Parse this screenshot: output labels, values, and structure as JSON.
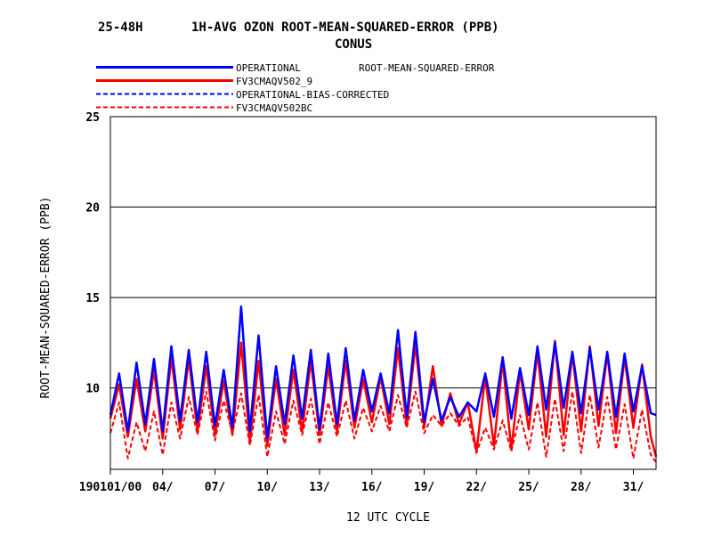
{
  "chart_data": {
    "type": "line",
    "title_left": "25-48H",
    "title_main": "1H-AVG OZON ROOT-MEAN-SQUARED-ERROR (PPB)",
    "subtitle": "CONUS",
    "legend_header": "ROOT-MEAN-SQUARED-ERROR",
    "xlabel": "12 UTC CYCLE",
    "ylabel": "ROOT-MEAN-SQUARED-ERROR (PPB)",
    "ylim": [
      5.5,
      25
    ],
    "yticks": [
      10,
      15,
      20,
      25
    ],
    "xlim": [
      1,
      32.3
    ],
    "xtick_values": [
      1,
      4,
      7,
      10,
      13,
      16,
      19,
      22,
      25,
      28,
      31
    ],
    "xtick_labels": [
      "190101/00",
      "04/",
      "07/",
      "10/",
      "13/",
      "16/",
      "19/",
      "22/",
      "25/",
      "28/",
      "31/"
    ],
    "grid": "horizontal",
    "legend_position": "top-left",
    "series": [
      {
        "name": "OPERATIONAL",
        "color": "#0000ff",
        "style": "solid",
        "x": [
          1.0,
          1.5,
          2.0,
          2.5,
          3.0,
          3.5,
          4.0,
          4.5,
          5.0,
          5.5,
          6.0,
          6.5,
          7.0,
          7.5,
          8.0,
          8.5,
          9.0,
          9.5,
          10.0,
          10.5,
          11.0,
          11.5,
          12.0,
          12.5,
          13.0,
          13.5,
          14.0,
          14.5,
          15.0,
          15.5,
          16.0,
          16.5,
          17.0,
          17.5,
          18.0,
          18.5,
          19.0,
          19.5,
          20.0,
          20.5,
          21.0,
          21.5,
          22.0,
          22.5,
          23.0,
          23.5,
          24.0,
          24.5,
          25.0,
          25.5,
          26.0,
          26.5,
          27.0,
          27.5,
          28.0,
          28.5,
          29.0,
          29.5,
          30.0,
          30.5,
          31.0,
          31.5,
          32.0,
          32.3
        ],
        "values": [
          8.5,
          10.8,
          7.6,
          11.4,
          8.0,
          11.6,
          7.6,
          12.3,
          8.2,
          12.1,
          8.1,
          12.0,
          7.9,
          11.0,
          7.8,
          14.5,
          7.6,
          12.9,
          7.2,
          11.2,
          8.0,
          11.8,
          8.3,
          12.1,
          7.7,
          11.9,
          8.0,
          12.2,
          8.2,
          11.0,
          8.7,
          10.8,
          8.6,
          13.2,
          8.4,
          13.1,
          8.1,
          10.5,
          8.2,
          9.5,
          8.4,
          9.2,
          8.7,
          10.8,
          8.4,
          11.7,
          8.3,
          11.1,
          8.5,
          12.3,
          8.8,
          12.5,
          8.9,
          12.0,
          8.6,
          12.2,
          8.8,
          12.0,
          8.4,
          11.9,
          8.7,
          11.2,
          8.6,
          8.5
        ]
      },
      {
        "name": "FV3CMAQV502_9",
        "color": "#ff0000",
        "style": "solid",
        "x": [
          1.0,
          1.5,
          2.0,
          2.5,
          3.0,
          3.5,
          4.0,
          4.5,
          5.0,
          5.5,
          6.0,
          6.5,
          7.0,
          7.5,
          8.0,
          8.5,
          9.0,
          9.5,
          10.0,
          10.5,
          11.0,
          11.5,
          12.0,
          12.5,
          13.0,
          13.5,
          14.0,
          14.5,
          15.0,
          15.5,
          16.0,
          16.5,
          17.0,
          17.5,
          18.0,
          18.5,
          19.0,
          19.5,
          20.0,
          20.5,
          21.0,
          21.5,
          22.0,
          22.5,
          23.0,
          23.5,
          24.0,
          24.5,
          25.0,
          25.5,
          26.0,
          26.5,
          27.0,
          27.5,
          28.0,
          28.5,
          29.0,
          29.5,
          30.0,
          30.5,
          31.0,
          31.5,
          32.0,
          32.3
        ],
        "values": [
          8.3,
          10.2,
          7.3,
          10.5,
          7.6,
          11.0,
          7.2,
          11.7,
          7.7,
          11.6,
          7.6,
          11.2,
          7.4,
          10.4,
          7.4,
          12.5,
          7.0,
          11.5,
          6.8,
          10.5,
          7.4,
          11.0,
          7.6,
          11.5,
          7.4,
          11.2,
          7.6,
          11.5,
          7.8,
          10.5,
          8.1,
          10.6,
          8.0,
          12.2,
          7.9,
          12.4,
          7.8,
          11.2,
          7.9,
          9.7,
          8.0,
          9.2,
          6.5,
          10.6,
          6.8,
          11.5,
          6.6,
          10.9,
          7.7,
          12.0,
          7.3,
          12.6,
          7.4,
          11.9,
          7.6,
          12.3,
          7.9,
          11.9,
          7.5,
          11.7,
          7.8,
          11.3,
          7.3,
          6.2
        ]
      },
      {
        "name": "OPERATIONAL-BIAS-CORRECTED",
        "color": "#0000ff",
        "style": "dashed",
        "x": [],
        "values": []
      },
      {
        "name": "FV3CMAQV502BC",
        "color": "#ff0000",
        "style": "dashed",
        "x": [
          1.0,
          1.5,
          2.0,
          2.5,
          3.0,
          3.5,
          4.0,
          4.5,
          5.0,
          5.5,
          6.0,
          6.5,
          7.0,
          7.5,
          8.0,
          8.5,
          9.0,
          9.5,
          10.0,
          10.5,
          11.0,
          11.5,
          12.0,
          12.5,
          13.0,
          13.5,
          14.0,
          14.5,
          15.0,
          15.5,
          16.0,
          16.5,
          17.0,
          17.5,
          18.0,
          18.5,
          19.0,
          19.5,
          20.0,
          20.5,
          21.0,
          21.5,
          22.0,
          22.5,
          23.0,
          23.5,
          24.0,
          24.5,
          25.0,
          25.5,
          26.0,
          26.5,
          27.0,
          27.5,
          28.0,
          28.5,
          29.0,
          29.5,
          30.0,
          30.5,
          31.0,
          31.5,
          32.0,
          32.3
        ],
        "values": [
          7.5,
          9.2,
          6.1,
          8.1,
          6.5,
          8.7,
          6.3,
          9.2,
          7.2,
          9.5,
          7.4,
          9.8,
          7.1,
          9.3,
          7.5,
          9.7,
          6.8,
          9.6,
          6.2,
          8.7,
          6.9,
          9.3,
          7.4,
          9.4,
          6.9,
          9.2,
          7.3,
          9.3,
          7.2,
          8.9,
          7.6,
          9.0,
          7.6,
          9.6,
          7.8,
          9.8,
          7.5,
          8.5,
          7.9,
          8.6,
          7.9,
          8.4,
          6.4,
          7.8,
          6.6,
          8.2,
          6.5,
          8.5,
          6.6,
          9.2,
          6.2,
          9.4,
          6.5,
          9.8,
          6.4,
          9.6,
          6.7,
          9.5,
          6.6,
          9.1,
          6.1,
          8.8,
          6.3,
          5.9
        ]
      }
    ]
  }
}
